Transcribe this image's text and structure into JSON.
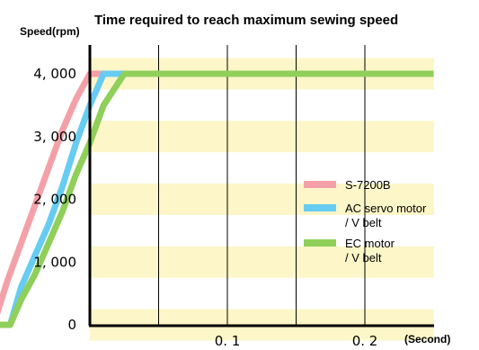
{
  "chart_data": {
    "type": "line",
    "title": "Time required to reach maximum sewing speed",
    "ylabel": "Speed(rpm)",
    "xlabel": "(Second)",
    "xlim": [
      -0.1,
      0.25
    ],
    "ylim": [
      0,
      4000
    ],
    "y_ticks": [
      {
        "value": 0,
        "label": "0"
      },
      {
        "value": 1000,
        "label": "1, 000"
      },
      {
        "value": 2000,
        "label": "2, 000"
      },
      {
        "value": 3000,
        "label": "3, 000"
      },
      {
        "value": 4000,
        "label": "4, 000"
      }
    ],
    "x_ticks": [
      {
        "value": 0.1,
        "label": "0. 1"
      },
      {
        "value": 0.2,
        "label": "0. 2"
      }
    ],
    "x_gridlines": [
      0.05,
      0.1,
      0.15,
      0.2
    ],
    "series": [
      {
        "name": "S-7200B",
        "color": "#f4a0a8",
        "points": [
          [
            -0.08,
            0
          ],
          [
            -0.07,
            0
          ],
          [
            -0.06,
            700
          ],
          [
            -0.05,
            1300
          ],
          [
            -0.04,
            1900
          ],
          [
            -0.03,
            2500
          ],
          [
            -0.02,
            3100
          ],
          [
            -0.01,
            3600
          ],
          [
            0.0,
            4000
          ],
          [
            0.01,
            4000
          ]
        ]
      },
      {
        "name": "AC servo motor / V belt",
        "color": "#66ccf2",
        "points": [
          [
            -0.08,
            0
          ],
          [
            -0.058,
            0
          ],
          [
            -0.05,
            600
          ],
          [
            -0.04,
            1100
          ],
          [
            -0.03,
            1600
          ],
          [
            -0.02,
            2200
          ],
          [
            -0.01,
            2900
          ],
          [
            0.0,
            3500
          ],
          [
            0.01,
            4000
          ],
          [
            0.04,
            4000
          ]
        ]
      },
      {
        "name": "EC motor / V belt",
        "color": "#8fcf5a",
        "points": [
          [
            -0.08,
            0
          ],
          [
            -0.058,
            0
          ],
          [
            -0.05,
            400
          ],
          [
            -0.04,
            800
          ],
          [
            -0.03,
            1300
          ],
          [
            -0.02,
            1800
          ],
          [
            -0.01,
            2400
          ],
          [
            0.0,
            2900
          ],
          [
            0.01,
            3500
          ],
          [
            0.025,
            4000
          ],
          [
            0.25,
            4000
          ]
        ]
      }
    ],
    "legend": {
      "placement": "right-middle",
      "items": [
        {
          "lines": [
            "S-7200B"
          ],
          "color": "#f4a0a8"
        },
        {
          "lines": [
            "AC servo motor",
            "/ V belt"
          ],
          "color": "#66ccf2"
        },
        {
          "lines": [
            "EC motor",
            "/ V belt"
          ],
          "color": "#8fcf5a"
        }
      ]
    },
    "band_color": "#fdf6c8",
    "grid": true
  }
}
